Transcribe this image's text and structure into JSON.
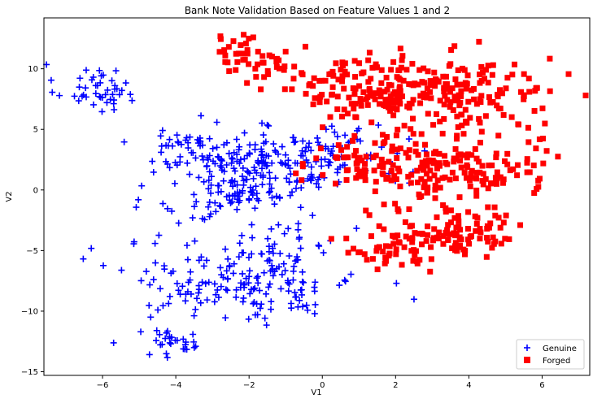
{
  "chart_data": {
    "type": "scatter",
    "title": "Bank Note Validation Based on Feature Values 1 and 2",
    "xlabel": "V1",
    "ylabel": "V2",
    "xlim": [
      -7.6,
      7.3
    ],
    "ylim": [
      -15.3,
      14.2
    ],
    "xticks": [
      -6,
      -4,
      -2,
      0,
      2,
      4,
      6
    ],
    "yticks": [
      -15,
      -10,
      -5,
      0,
      5,
      10
    ],
    "grid": false,
    "legend_position": "bottom-right",
    "series": [
      {
        "name": "Genuine",
        "marker": "+",
        "color": "#0000ff",
        "clusters": [
          {
            "cx": -6.2,
            "cy": 8.4,
            "sx": 0.55,
            "sy": 1.0,
            "n": 45
          },
          {
            "cx": -3.3,
            "cy": 3.6,
            "sx": 0.9,
            "sy": 1.0,
            "n": 60
          },
          {
            "cx": -1.5,
            "cy": 2.0,
            "sx": 1.1,
            "sy": 1.3,
            "n": 130
          },
          {
            "cx": 0.5,
            "cy": 2.8,
            "sx": 0.9,
            "sy": 1.3,
            "n": 60
          },
          {
            "cx": -2.5,
            "cy": -0.5,
            "sx": 1.0,
            "sy": 1.1,
            "n": 70
          },
          {
            "cx": -2.2,
            "cy": -7.5,
            "sx": 1.6,
            "sy": 1.7,
            "n": 170
          },
          {
            "cx": -4.1,
            "cy": -12.6,
            "sx": 0.55,
            "sy": 0.6,
            "n": 30
          },
          {
            "cx": -0.8,
            "cy": -4.4,
            "sx": 0.6,
            "sy": 1.2,
            "n": 30
          }
        ]
      },
      {
        "name": "Forged",
        "marker": "square",
        "color": "#ff0000",
        "clusters": [
          {
            "cx": -2.2,
            "cy": 11.4,
            "sx": 0.45,
            "sy": 0.8,
            "n": 30
          },
          {
            "cx": -1.3,
            "cy": 9.8,
            "sx": 0.6,
            "sy": 0.8,
            "n": 25
          },
          {
            "cx": 1.4,
            "cy": 8.4,
            "sx": 0.9,
            "sy": 1.3,
            "n": 130
          },
          {
            "cx": 3.8,
            "cy": 8.0,
            "sx": 1.3,
            "sy": 1.5,
            "n": 150
          },
          {
            "cx": 1.3,
            "cy": 2.3,
            "sx": 1.0,
            "sy": 1.3,
            "n": 80
          },
          {
            "cx": 3.6,
            "cy": 1.5,
            "sx": 1.1,
            "sy": 1.4,
            "n": 140
          },
          {
            "cx": 3.5,
            "cy": -3.6,
            "sx": 1.0,
            "sy": 0.9,
            "n": 110
          },
          {
            "cx": 1.8,
            "cy": -5.3,
            "sx": 0.8,
            "sy": 0.8,
            "n": 30
          },
          {
            "cx": 5.8,
            "cy": 4.5,
            "sx": 0.6,
            "sy": 1.5,
            "n": 12
          }
        ]
      }
    ]
  }
}
